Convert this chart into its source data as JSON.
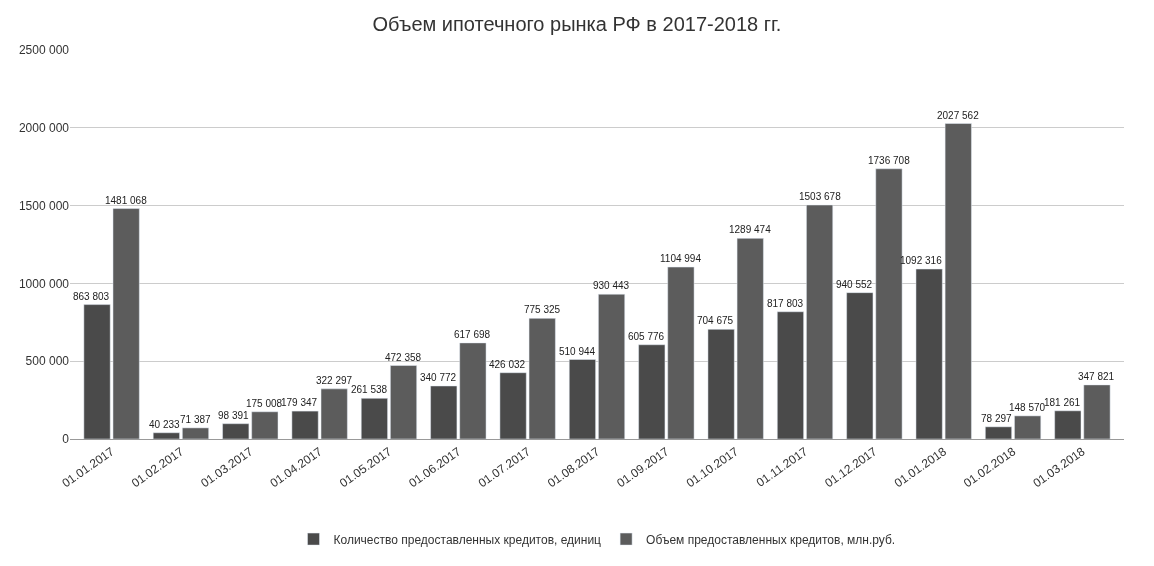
{
  "chart_data": {
    "type": "bar",
    "title": "Объем ипотечного рынка РФ в 2017-2018 гг.",
    "categories": [
      "01.01.2017",
      "01.02.2017",
      "01.03.2017",
      "01.04.2017",
      "01.05.2017",
      "01.06.2017",
      "01.07.2017",
      "01.08.2017",
      "01.09.2017",
      "01.10.2017",
      "01.11.2017",
      "01.12.2017",
      "01.01.2018",
      "01.02.2018",
      "01.03.2018"
    ],
    "series": [
      {
        "name": "Количество предоставленных кредитов, единиц",
        "color": "#4a4a4a",
        "values": [
          863803,
          40233,
          98391,
          179347,
          261538,
          340772,
          426032,
          510944,
          605776,
          704675,
          817803,
          940552,
          1092316,
          78297,
          181261
        ],
        "value_labels": [
          "863 803",
          "40 233",
          "98 391",
          "179 347",
          "261 538",
          "340 772",
          "426 032",
          "510 944",
          "605 776",
          "704 675",
          "817 803",
          "940 552",
          "1092 316",
          "78 297",
          "181 261"
        ]
      },
      {
        "name": "Объем предоставленных кредитов, млн.руб.",
        "color": "#5c5c5c",
        "values": [
          1481068,
          71387,
          175008,
          322297,
          472358,
          617698,
          775325,
          930443,
          1104994,
          1289474,
          1503678,
          1736708,
          2027562,
          148570,
          347821
        ],
        "value_labels": [
          "1481 068",
          "71 387",
          "175 008",
          "322 297",
          "472 358",
          "617 698",
          "775 325",
          "930 443",
          "1104 994",
          "1289 474",
          "1503 678",
          "1736 708",
          "2027 562",
          "148 570",
          "347 821"
        ]
      }
    ],
    "ylim": [
      0,
      2500000
    ],
    "yticks": [
      0,
      {
        "value": 500000,
        "label": "500 000"
      },
      {
        "value": 1000000,
        "label": "1000 000"
      },
      {
        "value": 1500000,
        "label": "1500 000"
      },
      {
        "value": 2000000,
        "label": "2000 000"
      },
      {
        "value": 2500000,
        "label": "2500 000"
      }
    ],
    "grid": "y",
    "legend": "bottom"
  }
}
